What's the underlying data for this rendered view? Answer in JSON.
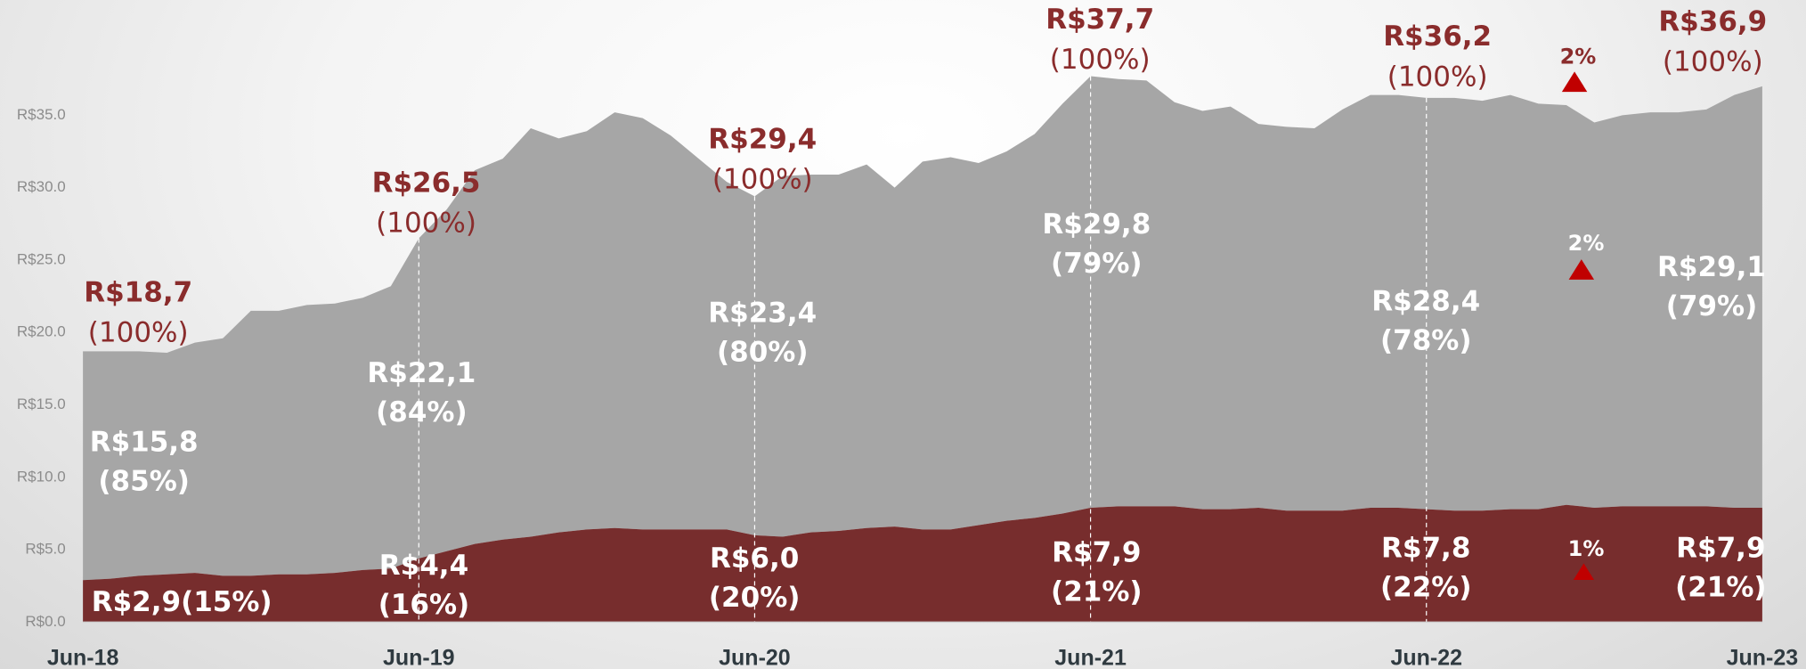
{
  "chart_data": {
    "type": "stacked_area",
    "categories": [
      "Jun-18",
      null,
      null,
      null,
      null,
      null,
      null,
      null,
      null,
      null,
      null,
      null,
      "Jun-19",
      null,
      null,
      null,
      null,
      null,
      null,
      null,
      null,
      null,
      null,
      null,
      "Jun-20",
      null,
      null,
      null,
      null,
      null,
      null,
      null,
      null,
      null,
      null,
      null,
      "Jun-21",
      null,
      null,
      null,
      null,
      null,
      null,
      null,
      null,
      null,
      null,
      null,
      "Jun-22",
      null,
      null,
      null,
      null,
      null,
      null,
      null,
      null,
      null,
      null,
      null,
      "Jun-23"
    ],
    "series": [
      {
        "color": "#772d2d",
        "values": [
          2.9,
          3.0,
          3.2,
          3.3,
          3.4,
          3.2,
          3.2,
          3.3,
          3.3,
          3.4,
          3.6,
          3.7,
          4.4,
          4.9,
          5.4,
          5.7,
          5.9,
          6.2,
          6.4,
          6.5,
          6.4,
          6.4,
          6.4,
          6.4,
          6.0,
          5.9,
          6.2,
          6.3,
          6.5,
          6.6,
          6.4,
          6.4,
          6.7,
          7.0,
          7.2,
          7.5,
          7.9,
          8.0,
          8.0,
          8.0,
          7.8,
          7.8,
          7.9,
          7.7,
          7.7,
          7.7,
          7.9,
          7.9,
          7.8,
          7.7,
          7.7,
          7.8,
          7.8,
          8.1,
          7.9,
          8.0,
          8.0,
          8.0,
          8.0,
          7.9,
          7.9
        ],
        "value_labels": [
          "R$2,9",
          null,
          null,
          null,
          null,
          null,
          null,
          null,
          null,
          null,
          null,
          null,
          "R$4,4",
          null,
          null,
          null,
          null,
          null,
          null,
          null,
          null,
          null,
          null,
          null,
          "R$6,0",
          null,
          null,
          null,
          null,
          null,
          null,
          null,
          null,
          null,
          null,
          null,
          "R$7,9",
          null,
          null,
          null,
          null,
          null,
          null,
          null,
          null,
          null,
          null,
          null,
          "R$7,8",
          null,
          null,
          null,
          null,
          null,
          null,
          null,
          null,
          null,
          null,
          null,
          "R$7,9"
        ],
        "share_labels": [
          "(15%)",
          null,
          null,
          null,
          null,
          null,
          null,
          null,
          null,
          null,
          null,
          null,
          "(16%)",
          null,
          null,
          null,
          null,
          null,
          null,
          null,
          null,
          null,
          null,
          null,
          "(20%)",
          null,
          null,
          null,
          null,
          null,
          null,
          null,
          null,
          null,
          null,
          null,
          "(21%)",
          null,
          null,
          null,
          null,
          null,
          null,
          null,
          null,
          null,
          null,
          null,
          "(22%)",
          null,
          null,
          null,
          null,
          null,
          null,
          null,
          null,
          null,
          null,
          null,
          "(21%)"
        ]
      },
      {
        "color": "#a6a6a6",
        "values": [
          15.8,
          15.7,
          15.5,
          15.3,
          15.9,
          16.4,
          18.3,
          18.2,
          18.6,
          18.6,
          18.8,
          19.5,
          22.1,
          23.6,
          25.8,
          26.3,
          28.2,
          27.2,
          27.5,
          28.7,
          28.4,
          27.2,
          25.6,
          24.0,
          23.4,
          24.9,
          24.7,
          24.6,
          25.1,
          23.4,
          25.4,
          25.7,
          25.0,
          25.5,
          26.5,
          28.3,
          29.8,
          29.5,
          29.4,
          27.9,
          27.5,
          27.8,
          26.5,
          26.5,
          26.4,
          27.7,
          28.5,
          28.5,
          28.4,
          28.5,
          28.3,
          28.6,
          28.0,
          27.6,
          26.6,
          27.0,
          27.2,
          27.2,
          27.4,
          28.5,
          29.1
        ],
        "value_labels": [
          "R$15,8",
          null,
          null,
          null,
          null,
          null,
          null,
          null,
          null,
          null,
          null,
          null,
          "R$22,1",
          null,
          null,
          null,
          null,
          null,
          null,
          null,
          null,
          null,
          null,
          null,
          "R$23,4",
          null,
          null,
          null,
          null,
          null,
          null,
          null,
          null,
          null,
          null,
          null,
          "R$29,8",
          null,
          null,
          null,
          null,
          null,
          null,
          null,
          null,
          null,
          null,
          null,
          "R$28,4",
          null,
          null,
          null,
          null,
          null,
          null,
          null,
          null,
          null,
          null,
          null,
          "R$29,1"
        ],
        "share_labels": [
          "(85%)",
          null,
          null,
          null,
          null,
          null,
          null,
          null,
          null,
          null,
          null,
          null,
          "(84%)",
          null,
          null,
          null,
          null,
          null,
          null,
          null,
          null,
          null,
          null,
          null,
          "(80%)",
          null,
          null,
          null,
          null,
          null,
          null,
          null,
          null,
          null,
          null,
          null,
          "(79%)",
          null,
          null,
          null,
          null,
          null,
          null,
          null,
          null,
          null,
          null,
          null,
          "(78%)",
          null,
          null,
          null,
          null,
          null,
          null,
          null,
          null,
          null,
          null,
          null,
          "(79%)"
        ]
      }
    ],
    "total_labels": [
      "R$18,7",
      null,
      null,
      null,
      null,
      null,
      null,
      null,
      null,
      null,
      null,
      null,
      "R$26,5",
      null,
      null,
      null,
      null,
      null,
      null,
      null,
      null,
      null,
      null,
      null,
      "R$29,4",
      null,
      null,
      null,
      null,
      null,
      null,
      null,
      null,
      null,
      null,
      null,
      "R$37,7",
      null,
      null,
      null,
      null,
      null,
      null,
      null,
      null,
      null,
      null,
      null,
      "R$36,2",
      null,
      null,
      null,
      null,
      null,
      null,
      null,
      null,
      null,
      null,
      null,
      "R$36,9"
    ],
    "total_share_labels": [
      "(100%)",
      null,
      null,
      null,
      null,
      null,
      null,
      null,
      null,
      null,
      null,
      null,
      "(100%)",
      null,
      null,
      null,
      null,
      null,
      null,
      null,
      null,
      null,
      null,
      null,
      "(100%)",
      null,
      null,
      null,
      null,
      null,
      null,
      null,
      null,
      null,
      null,
      null,
      "(100%)",
      null,
      null,
      null,
      null,
      null,
      null,
      null,
      null,
      null,
      null,
      null,
      "(100%)",
      null,
      null,
      null,
      null,
      null,
      null,
      null,
      null,
      null,
      null,
      null,
      "(100%)"
    ],
    "annotations": [
      {
        "text": "2%",
        "color": "#c00000"
      },
      {
        "text": "2%",
        "color": "#c00000"
      },
      {
        "text": "1%",
        "color": "#c00000"
      }
    ],
    "ylim": [
      0,
      40
    ],
    "yticks": [
      {
        "value": 0,
        "label": "R$0.0"
      },
      {
        "value": 5,
        "label": "R$5.0"
      },
      {
        "value": 10,
        "label": "R$10.0"
      },
      {
        "value": 15,
        "label": "R$15.0"
      },
      {
        "value": 20,
        "label": "R$20.0"
      },
      {
        "value": 25,
        "label": "R$25.0"
      },
      {
        "value": 30,
        "label": "R$30.0"
      },
      {
        "value": 35,
        "label": "R$35.0"
      }
    ]
  }
}
